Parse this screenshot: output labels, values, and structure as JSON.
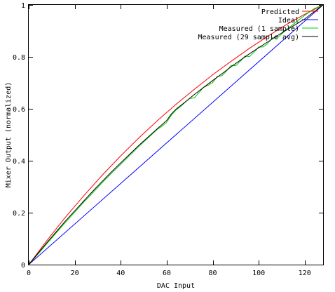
{
  "chart_data": {
    "type": "line",
    "title": "",
    "xlabel": "DAC Input",
    "ylabel": "Mixer Output (normalized)",
    "xlim": [
      0,
      128
    ],
    "ylim": [
      0,
      1
    ],
    "xticks": [
      0,
      20,
      40,
      60,
      80,
      100,
      120
    ],
    "xtick_labels": [
      "0",
      "20",
      "40",
      "60",
      "80",
      "100",
      "120"
    ],
    "yticks": [
      0,
      0.2,
      0.4,
      0.6,
      0.8,
      1
    ],
    "ytick_labels": [
      "0",
      "0.2",
      "0.4",
      "0.6",
      "0.8",
      "1"
    ],
    "grid": false,
    "legend_position": "top-right",
    "series": [
      {
        "name": "Predicted",
        "color": "#ff0000",
        "x": [
          0,
          8,
          16,
          24,
          32,
          40,
          48,
          56,
          64,
          72,
          80,
          88,
          96,
          104,
          112,
          120,
          128
        ],
        "y": [
          0,
          0.094,
          0.183,
          0.266,
          0.345,
          0.419,
          0.489,
          0.555,
          0.617,
          0.675,
          0.731,
          0.783,
          0.833,
          0.88,
          0.924,
          0.964,
          1.0
        ]
      },
      {
        "name": "Ideal",
        "color": "#0000ff",
        "x": [
          0,
          128
        ],
        "y": [
          0,
          1.0
        ]
      },
      {
        "name": "Measured (1 sample)",
        "color": "#00cc00",
        "x": [
          0,
          4,
          8,
          12,
          16,
          20,
          24,
          28,
          32,
          36,
          40,
          44,
          48,
          52,
          56,
          58,
          60,
          62,
          64,
          66,
          68,
          70,
          72,
          74,
          76,
          78,
          80,
          82,
          84,
          86,
          88,
          90,
          92,
          94,
          96,
          98,
          100,
          102,
          104,
          106,
          108,
          110,
          112,
          116,
          120,
          124,
          128
        ],
        "y": [
          0,
          0.04,
          0.082,
          0.123,
          0.163,
          0.202,
          0.241,
          0.278,
          0.316,
          0.352,
          0.386,
          0.421,
          0.456,
          0.489,
          0.522,
          0.533,
          0.548,
          0.575,
          0.595,
          0.608,
          0.625,
          0.64,
          0.642,
          0.662,
          0.683,
          0.69,
          0.701,
          0.725,
          0.727,
          0.746,
          0.767,
          0.766,
          0.783,
          0.803,
          0.801,
          0.818,
          0.838,
          0.838,
          0.852,
          0.874,
          0.872,
          0.888,
          0.905,
          0.932,
          0.96,
          0.985,
          1.0
        ]
      },
      {
        "name": "Measured (29 sample avg)",
        "color": "#000000",
        "x": [
          0,
          4,
          8,
          12,
          16,
          20,
          24,
          28,
          32,
          36,
          40,
          44,
          48,
          52,
          56,
          60,
          62,
          64,
          68,
          72,
          76,
          80,
          84,
          88,
          92,
          96,
          100,
          104,
          108,
          112,
          116,
          120,
          124,
          128
        ],
        "y": [
          0,
          0.043,
          0.086,
          0.127,
          0.168,
          0.207,
          0.246,
          0.284,
          0.321,
          0.357,
          0.392,
          0.426,
          0.46,
          0.492,
          0.524,
          0.555,
          0.58,
          0.598,
          0.626,
          0.655,
          0.682,
          0.709,
          0.735,
          0.762,
          0.787,
          0.812,
          0.835,
          0.858,
          0.881,
          0.903,
          0.924,
          0.946,
          0.973,
          1.0
        ]
      }
    ]
  }
}
